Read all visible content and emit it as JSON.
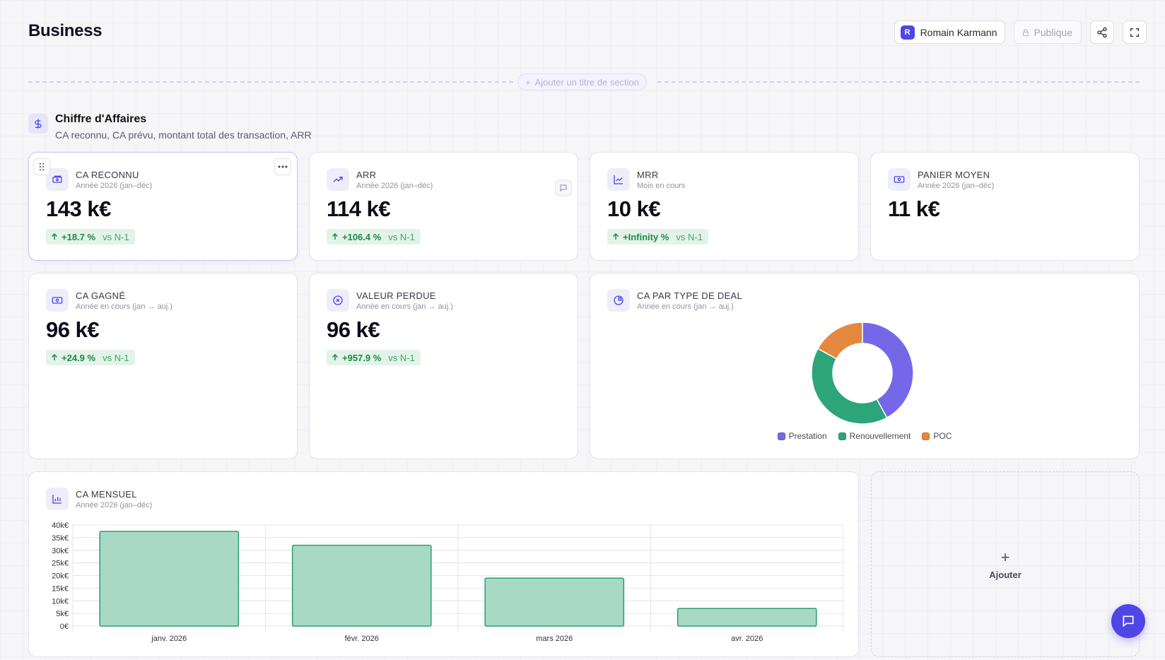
{
  "page": {
    "title": "Business"
  },
  "header": {
    "user": {
      "initial": "R",
      "name": "Romain Karmann"
    },
    "public_label": "Publique"
  },
  "section_divider": {
    "add_label": "Ajouter un titre de section"
  },
  "section": {
    "title": "Chiffre d'Affaires",
    "subtitle": "CA reconnu, CA prévu, montant total des transaction, ARR"
  },
  "kpis": [
    {
      "label": "CA RECONNU",
      "period": "Année 2026 (jan–déc)",
      "value": "143 k€",
      "delta": "+18.7 %",
      "vs": "vs N-1",
      "icon": "money-icon"
    },
    {
      "label": "ARR",
      "period": "Année 2026 (jan–déc)",
      "value": "114 k€",
      "delta": "+106.4 %",
      "vs": "vs N-1",
      "icon": "trending-up-icon"
    },
    {
      "label": "MRR",
      "period": "Mois en cours",
      "value": "10 k€",
      "delta": "+Infinity %",
      "vs": "vs N-1",
      "icon": "line-chart-icon"
    },
    {
      "label": "PANIER MOYEN",
      "period": "Année 2026 (jan–déc)",
      "value": "11 k€",
      "icon": "banknote-icon"
    },
    {
      "label": "CA GAGNÉ",
      "period": "Année en cours (jan → auj.)",
      "value": "96 k€",
      "delta": "+24.9 %",
      "vs": "vs N-1",
      "icon": "banknote-icon"
    },
    {
      "label": "VALEUR PERDUE",
      "period": "Année en cours (jan → auj.)",
      "value": "96 k€",
      "delta": "+957.9 %",
      "vs": "vs N-1",
      "icon": "x-circle-icon"
    }
  ],
  "donut_card": {
    "label": "CA PAR TYPE DE DEAL",
    "period": "Année en cours (jan → auj.)",
    "icon": "pie-chart-icon"
  },
  "bar_card": {
    "label": "CA MENSUEL",
    "period": "Année 2026 (jan–déc)",
    "icon": "bar-chart-icon"
  },
  "add_card": {
    "label": "Ajouter"
  },
  "colors": {
    "accent": "#4f46e5",
    "positive": "#1b8a4a",
    "positive_bg": "#e3f3ea",
    "bar_fill": "#a8d9c4",
    "bar_stroke": "#2e9e6e"
  },
  "chart_data": [
    {
      "type": "pie",
      "categories": [
        "Prestation",
        "Renouvellement",
        "POC"
      ],
      "values": [
        42,
        41,
        17
      ],
      "colors": [
        "#7468e8",
        "#2ea47a",
        "#e5883f"
      ],
      "legend": "bottom"
    },
    {
      "type": "bar",
      "categories": [
        "janv. 2026",
        "févr. 2026",
        "mars 2026",
        "avr. 2026"
      ],
      "values": [
        37500,
        32000,
        19000,
        7000
      ],
      "ylim": [
        0,
        40000
      ],
      "yticks": [
        "0€",
        "5k€",
        "10k€",
        "15k€",
        "20k€",
        "25k€",
        "30k€",
        "35k€",
        "40k€"
      ],
      "grid": true
    }
  ]
}
